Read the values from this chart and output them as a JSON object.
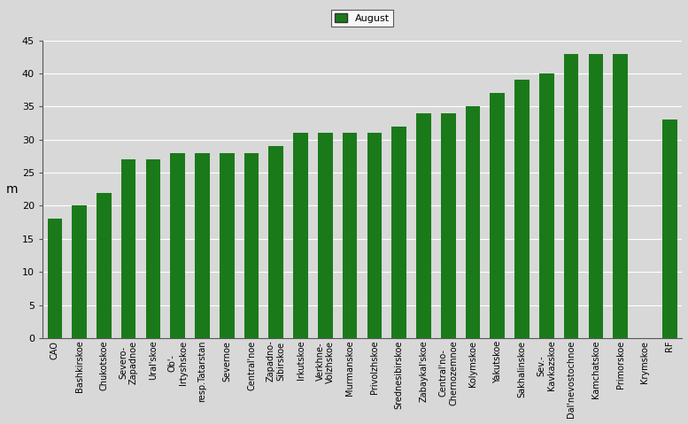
{
  "categories": [
    "CAO",
    "Bashkirskoe",
    "Chukotskoe",
    "Severo-\nZapadnoe",
    "Ural'skoe",
    "Ob'-\nIrtyshskoe",
    "resp.Tatarstan",
    "Severnoe",
    "Central'noe",
    "Zapadno-\nSibirskoe",
    "Irkutskoe",
    "Verkhne-\nVolzhskoe",
    "Murmanskoe",
    "Privolzhskoe",
    "Srednesibirskoe",
    "Zabaykal'skoe",
    "Central'no-\nChernozemnoe",
    "Kolymskoe",
    "Yakutskoe",
    "Sakhalinskoe",
    "Sev.-\nKavkazskoe",
    "Dal'nevostochnoe",
    "Kamchatskoe",
    "Primorskoe",
    "Krymskoe",
    "RF"
  ],
  "values": [
    18,
    20,
    22,
    27,
    27,
    28,
    28,
    28,
    28,
    29,
    31,
    31,
    31,
    31,
    32,
    34,
    34,
    35,
    37,
    39,
    40,
    43,
    43,
    43,
    0,
    33
  ],
  "bar_color": "#1a7a1a",
  "ylabel": "m",
  "ylim": [
    0,
    45
  ],
  "yticks": [
    0,
    5,
    10,
    15,
    20,
    25,
    30,
    35,
    40,
    45
  ],
  "legend_label": "August",
  "legend_color": "#1a7a1a",
  "background_color": "#d8d8d8",
  "plot_bg_color": "#d8d8d8",
  "grid_color": "#ffffff",
  "bar_width": 0.6
}
